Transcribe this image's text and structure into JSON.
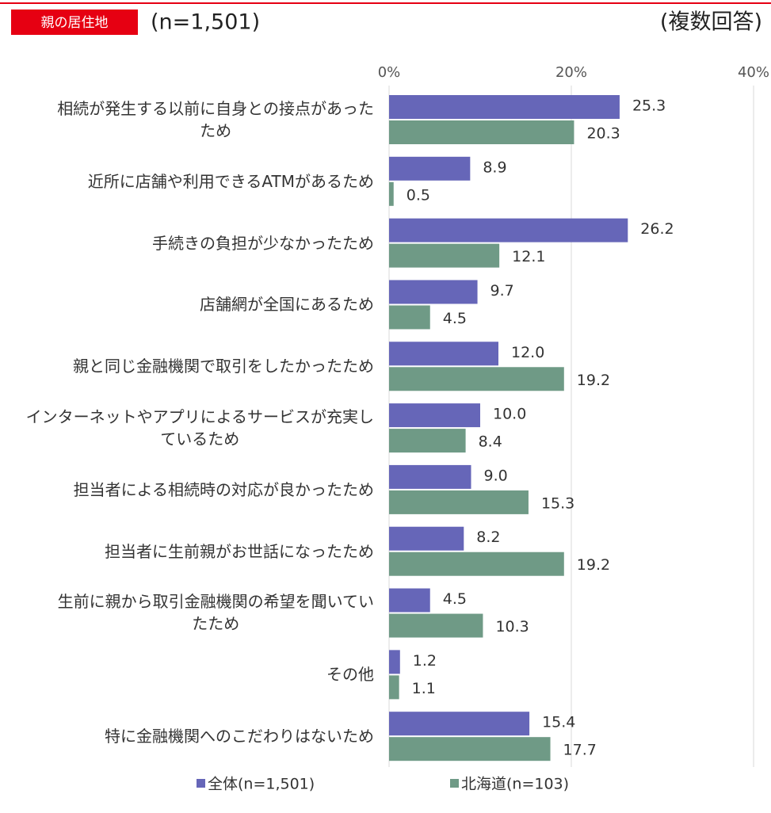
{
  "chart_data": {
    "type": "barh",
    "badge": "親の居住地",
    "subtitle": "(n=1,501)",
    "note": "(複数回答)",
    "categories": [
      "相続が発生する以前に自身との接点があった\nため",
      "近所に店舗や利用できるATMがあるため",
      "手続きの負担が少なかったため",
      "店舗網が全国にあるため",
      "親と同じ金融機関で取引をしたかったため",
      "インターネットやアプリによるサービスが充実し\nているため",
      "担当者による相続時の対応が良かったため",
      "担当者に生前親がお世話になったため",
      "生前に親から取引金融機関の希望を聞いてい\nたため",
      "その他",
      "特に金融機関へのこだわりはないため"
    ],
    "series": [
      {
        "name": "全体(n=1,501)",
        "color": "#6666b8",
        "values": [
          25.3,
          8.9,
          26.2,
          9.7,
          12.0,
          10.0,
          9.0,
          8.2,
          4.5,
          1.2,
          15.4
        ],
        "value_labels": [
          "25.3",
          "8.9",
          "26.2",
          "9.7",
          "12.0",
          "10.0",
          "9.0",
          "8.2",
          "4.5",
          "1.2",
          "15.4"
        ]
      },
      {
        "name": "北海道(n=103)",
        "color": "#6f9a86",
        "values": [
          20.3,
          0.5,
          12.1,
          4.5,
          19.2,
          8.4,
          15.3,
          19.2,
          10.3,
          1.1,
          17.7
        ],
        "value_labels": [
          "20.3",
          "0.5",
          "12.1",
          "4.5",
          "19.2",
          "8.4",
          "15.3",
          "19.2",
          "10.3",
          "1.1",
          "17.7"
        ]
      }
    ],
    "xlim": [
      0,
      40
    ],
    "xticks": [
      {
        "value": 0,
        "label": "0%"
      },
      {
        "value": 20,
        "label": "20%"
      },
      {
        "value": 40,
        "label": "40%"
      }
    ],
    "grid": true,
    "legend": "bottom"
  }
}
